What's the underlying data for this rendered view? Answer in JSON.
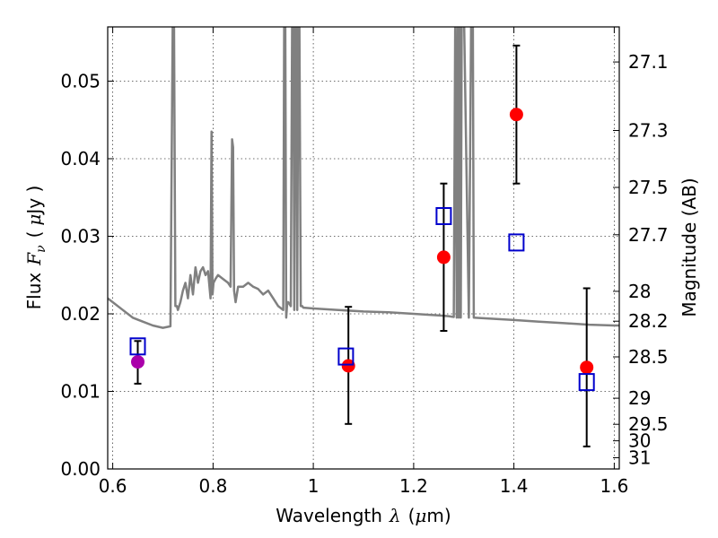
{
  "chart_data": {
    "type": "scatter",
    "title": "",
    "xlabel": {
      "prefix": "Wavelength",
      "symbol": "λ",
      "unit_open": "(",
      "unit_mu": "μ",
      "unit_rest": "m)"
    },
    "ylabel": {
      "prefix": "Flux",
      "symbol": "F",
      "subscript": "ν",
      "unit_open": "(",
      "unit_mu": "μ",
      "unit_rest": "Jy )"
    },
    "y2label": "Magnitude (AB)",
    "xlim": [
      0.59,
      1.61
    ],
    "ylim": [
      0.0,
      0.057
    ],
    "grid": true,
    "x_ticks": [
      {
        "value": 0.6,
        "label": "0.6"
      },
      {
        "value": 0.8,
        "label": "0.8"
      },
      {
        "value": 1.0,
        "label": "1"
      },
      {
        "value": 1.2,
        "label": "1.2"
      },
      {
        "value": 1.4,
        "label": "1.4"
      },
      {
        "value": 1.6,
        "label": "1.6"
      }
    ],
    "y_ticks": [
      {
        "value": 0.0,
        "label": "0.00"
      },
      {
        "value": 0.01,
        "label": "0.01"
      },
      {
        "value": 0.02,
        "label": "0.02"
      },
      {
        "value": 0.03,
        "label": "0.03"
      },
      {
        "value": 0.04,
        "label": "0.04"
      },
      {
        "value": 0.05,
        "label": "0.05"
      }
    ],
    "y2_ticks": [
      {
        "value": 27.1,
        "label": "27.1"
      },
      {
        "value": 27.3,
        "label": "27.3"
      },
      {
        "value": 27.5,
        "label": "27.5"
      },
      {
        "value": 27.7,
        "label": "27.7"
      },
      {
        "value": 28,
        "label": "28"
      },
      {
        "value": 28.2,
        "label": "28.2"
      },
      {
        "value": 28.5,
        "label": "28.5"
      },
      {
        "value": 29,
        "label": "29"
      },
      {
        "value": 29.5,
        "label": "29.5"
      },
      {
        "value": 30,
        "label": "30"
      },
      {
        "value": 31,
        "label": "31"
      }
    ],
    "model_spectrum": {
      "color": "#808080",
      "x": [
        0.59,
        0.6,
        0.62,
        0.64,
        0.66,
        0.68,
        0.7,
        0.715,
        0.72,
        0.722,
        0.725,
        0.728,
        0.73,
        0.735,
        0.74,
        0.745,
        0.75,
        0.755,
        0.76,
        0.765,
        0.77,
        0.775,
        0.78,
        0.785,
        0.79,
        0.795,
        0.797,
        0.799,
        0.801,
        0.805,
        0.81,
        0.82,
        0.83,
        0.835,
        0.838,
        0.84,
        0.842,
        0.845,
        0.85,
        0.86,
        0.87,
        0.88,
        0.89,
        0.9,
        0.91,
        0.92,
        0.93,
        0.94,
        0.942,
        0.944,
        0.946,
        0.948,
        0.95,
        0.955,
        0.958,
        0.96,
        0.962,
        0.964,
        0.966,
        0.968,
        0.97,
        0.972,
        0.975,
        0.978,
        0.98,
        1.0,
        1.05,
        1.1,
        1.15,
        1.2,
        1.25,
        1.27,
        1.28,
        1.283,
        1.286,
        1.288,
        1.29,
        1.292,
        1.294,
        1.296,
        1.3,
        1.31,
        1.315,
        1.318,
        1.32,
        1.35,
        1.4,
        1.45,
        1.5,
        1.55,
        1.6,
        1.61
      ],
      "y": [
        0.022,
        0.0215,
        0.0205,
        0.0195,
        0.019,
        0.0185,
        0.0182,
        0.0184,
        0.06,
        0.06,
        0.021,
        0.021,
        0.0205,
        0.0215,
        0.023,
        0.024,
        0.022,
        0.025,
        0.0225,
        0.026,
        0.024,
        0.0255,
        0.026,
        0.025,
        0.0255,
        0.022,
        0.0435,
        0.0225,
        0.024,
        0.0245,
        0.025,
        0.0245,
        0.024,
        0.0235,
        0.0425,
        0.0415,
        0.023,
        0.0215,
        0.0235,
        0.0235,
        0.024,
        0.0235,
        0.0232,
        0.0225,
        0.023,
        0.022,
        0.021,
        0.0205,
        0.06,
        0.06,
        0.0195,
        0.0215,
        0.0215,
        0.021,
        0.06,
        0.06,
        0.0205,
        0.06,
        0.06,
        0.0205,
        0.06,
        0.06,
        0.021,
        0.021,
        0.0208,
        0.0207,
        0.0205,
        0.0203,
        0.0202,
        0.02,
        0.0198,
        0.0197,
        0.0196,
        0.06,
        0.0195,
        0.06,
        0.0195,
        0.06,
        0.0195,
        0.06,
        0.06,
        0.0195,
        0.06,
        0.06,
        0.0195,
        0.0194,
        0.0192,
        0.019,
        0.0188,
        0.0186,
        0.0185,
        0.0185
      ]
    },
    "series": [
      {
        "marker": "circle",
        "color": "#ff0000",
        "points": [
          {
            "x": 1.07,
            "y": 0.0133,
            "yerr_low": 0.0058,
            "yerr_high": 0.0209
          },
          {
            "x": 1.26,
            "y": 0.0273,
            "yerr_low": 0.0178,
            "yerr_high": 0.0368
          },
          {
            "x": 1.405,
            "y": 0.0457,
            "yerr_low": 0.0368,
            "yerr_high": 0.0546
          },
          {
            "x": 1.545,
            "y": 0.0131,
            "yerr_low": 0.0029,
            "yerr_high": 0.0233
          }
        ]
      },
      {
        "marker": "circle",
        "color": "#aa00aa",
        "points": [
          {
            "x": 0.65,
            "y": 0.0138,
            "yerr_low": 0.011,
            "yerr_high": 0.0165
          }
        ]
      },
      {
        "marker": "open-square",
        "color": "#0000cc",
        "points": [
          {
            "x": 0.65,
            "y": 0.0158
          },
          {
            "x": 1.065,
            "y": 0.0145
          },
          {
            "x": 1.26,
            "y": 0.0326
          },
          {
            "x": 1.405,
            "y": 0.0292
          },
          {
            "x": 1.545,
            "y": 0.0112
          }
        ]
      }
    ]
  }
}
